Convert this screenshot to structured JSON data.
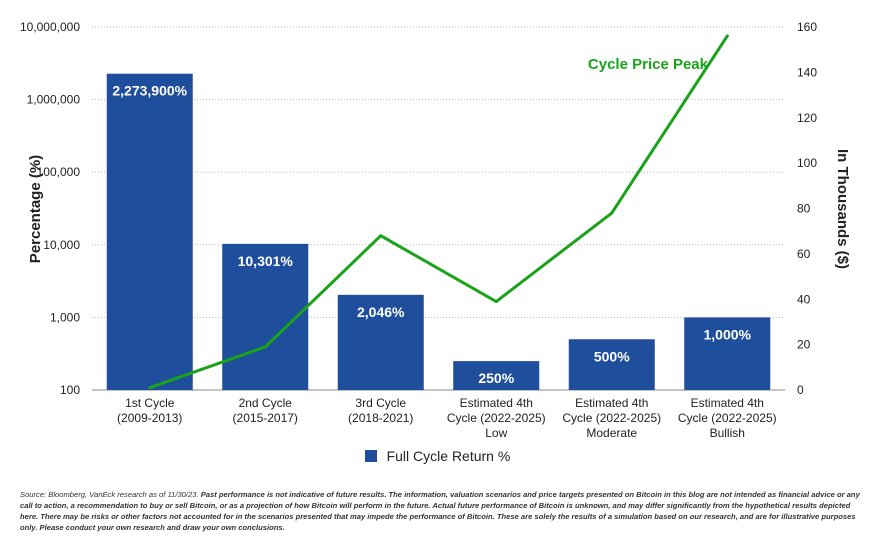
{
  "chart_data": {
    "type": "bar",
    "categories": [
      [
        "1st Cycle",
        "(2009-2013)"
      ],
      [
        "2nd Cycle",
        "(2015-2017)"
      ],
      [
        "3rd Cycle",
        "(2018-2021)"
      ],
      [
        "Estimated 4th",
        "Cycle (2022-2025)",
        "Low"
      ],
      [
        "Estimated 4th",
        "Cycle (2022-2025)",
        "Moderate"
      ],
      [
        "Estimated 4th",
        "Cycle (2022-2025)",
        "Bullish"
      ]
    ],
    "series": [
      {
        "name": "Full Cycle Return %",
        "axis": "left",
        "values": [
          2273900,
          10301,
          2046,
          250,
          500,
          1000
        ],
        "labels": [
          "2,273,900%",
          "10,301%",
          "2,046%",
          "250%",
          "500%",
          "1,000%"
        ],
        "color": "#1f4e9c"
      },
      {
        "name": "Cycle Price Peak",
        "axis": "right",
        "type": "line",
        "values": [
          1,
          19,
          68,
          39,
          78,
          156
        ],
        "color": "#1aa31a"
      }
    ],
    "ylabel": "Percentage (%)",
    "y2label": "In Thousands ($)",
    "yscale": "log",
    "ylim": [
      100,
      10000000
    ],
    "yticks": [
      "100",
      "1,000",
      "10,000",
      "100,000",
      "1,000,000",
      "10,000,000"
    ],
    "y2lim": [
      0,
      160
    ],
    "y2ticks": [
      "0",
      "20",
      "40",
      "60",
      "80",
      "100",
      "120",
      "140",
      "160"
    ],
    "grid": "horizontal dotted",
    "legend": "bottom-center"
  },
  "source_note": {
    "lead": "Source: Bloomberg, VanEck research as of 11/30/23.",
    "body": "Past performance is not indicative of future results. The information, valuation scenarios and price targets presented on Bitcoin in this blog are not intended as financial advice or any call to action, a recommendation to buy or sell Bitcoin, or as a projection of how Bitcoin will perform in the future. Actual future performance of Bitcoin is unknown, and may differ significantly from the hypothetical results depicted here. There may be risks or other factors not accounted for in the scenarios presented that may impede the performance of Bitcoin. These are solely the results of a simulation based on our research, and are for illustrative purposes only. Please conduct your own research and draw your own conclusions."
  }
}
